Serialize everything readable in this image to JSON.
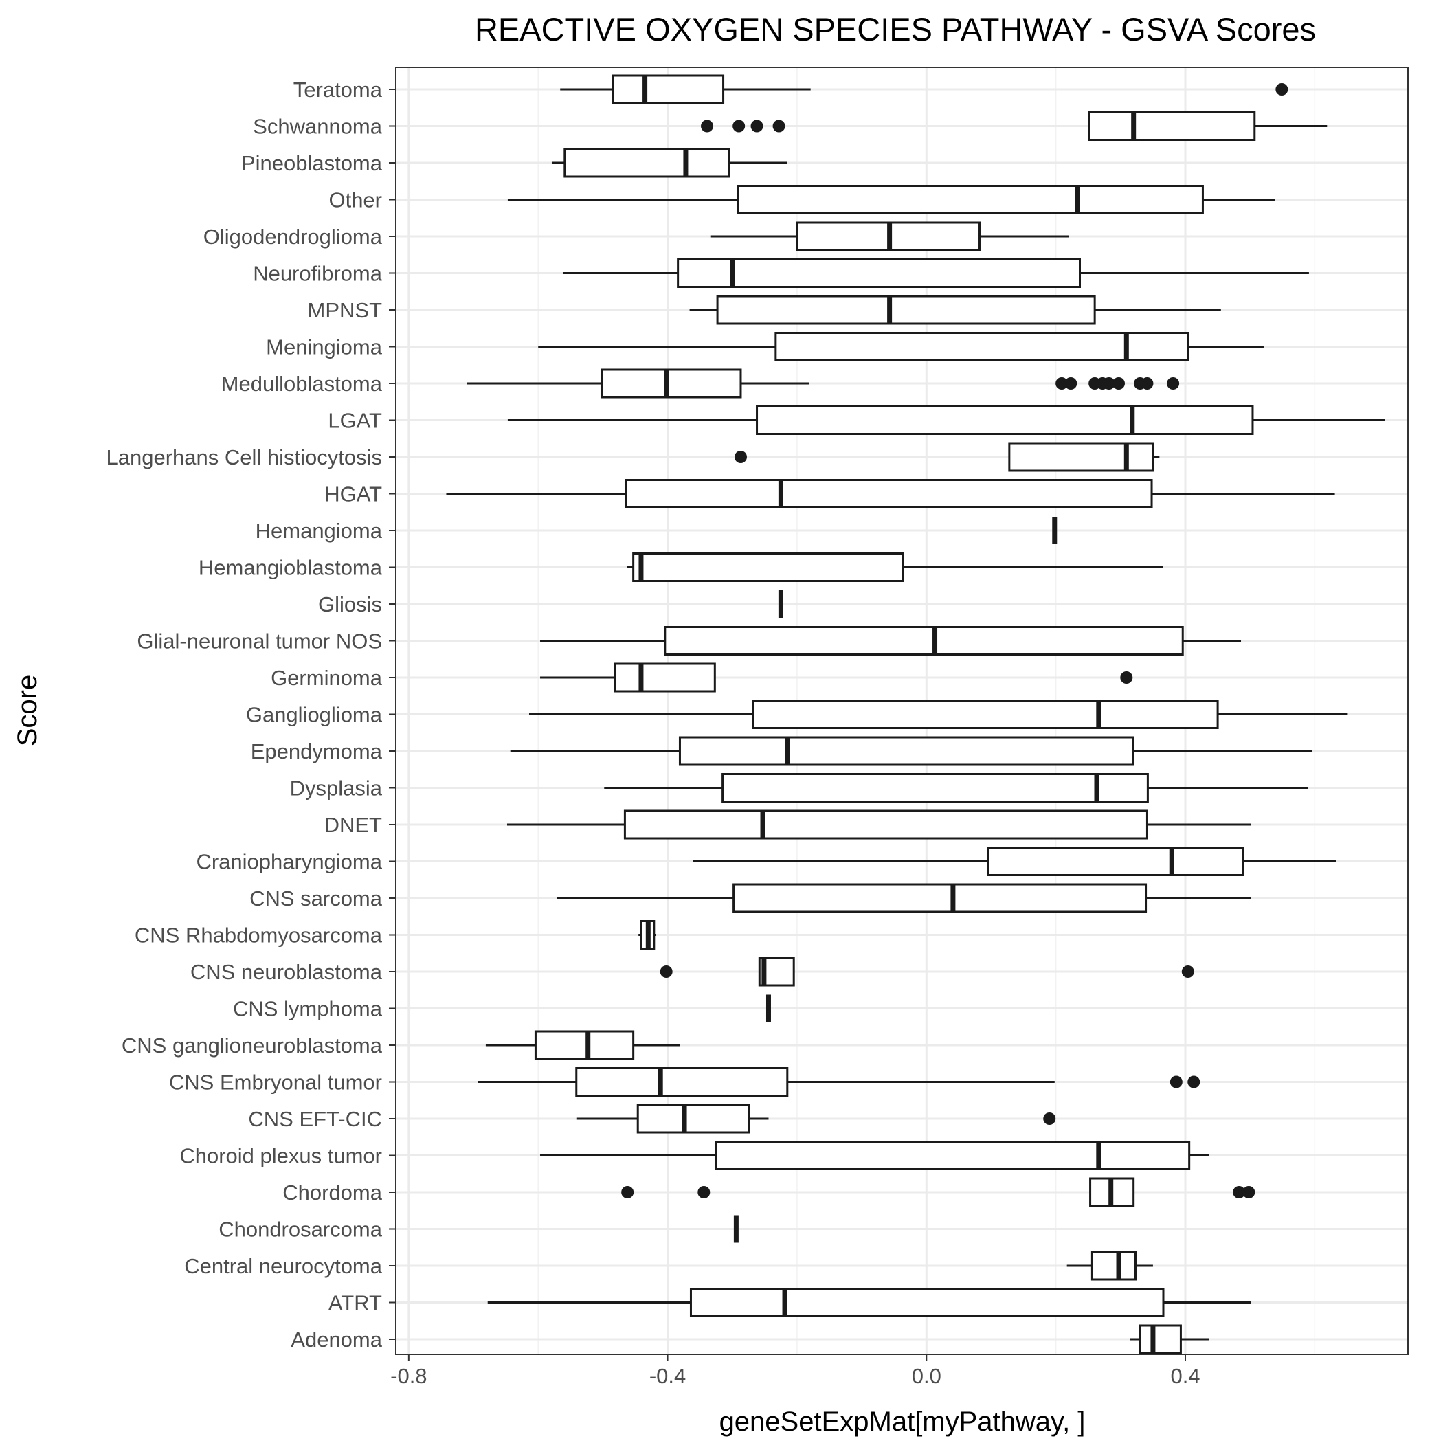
{
  "chart_data": {
    "type": "boxplot",
    "orientation": "horizontal",
    "title": "REACTIVE OXYGEN SPECIES PATHWAY - GSVA Scores",
    "xlabel": "geneSetExpMat[myPathway, ]",
    "ylabel": "Score",
    "xlim": [
      -0.82,
      0.744
    ],
    "x_ticks": [
      -0.8,
      -0.4,
      0.0,
      0.4
    ],
    "x_tick_labels": [
      "-0.8",
      "-0.4",
      "0.0",
      "0.4"
    ],
    "grid": true,
    "legend": "none",
    "categories": [
      {
        "name": "Teratoma",
        "whisker_low": -0.566,
        "q1": -0.484,
        "median": -0.435,
        "q3": -0.314,
        "whisker_high": -0.179,
        "outliers": [
          0.549
        ]
      },
      {
        "name": "Schwannoma",
        "whisker_low": 0.251,
        "q1": 0.251,
        "median": 0.32,
        "q3": 0.507,
        "whisker_high": 0.619,
        "outliers": [
          -0.339,
          -0.29,
          -0.262,
          -0.228
        ]
      },
      {
        "name": "Pineoblastoma",
        "whisker_low": -0.579,
        "q1": -0.559,
        "median": -0.372,
        "q3": -0.305,
        "whisker_high": -0.215,
        "outliers": []
      },
      {
        "name": "Other",
        "whisker_low": -0.647,
        "q1": -0.291,
        "median": 0.233,
        "q3": 0.427,
        "whisker_high": 0.539,
        "outliers": []
      },
      {
        "name": "Oligodendroglioma",
        "whisker_low": -0.334,
        "q1": -0.2,
        "median": -0.057,
        "q3": 0.082,
        "whisker_high": 0.22,
        "outliers": []
      },
      {
        "name": "Neurofibroma",
        "whisker_low": -0.562,
        "q1": -0.384,
        "median": -0.3,
        "q3": 0.237,
        "whisker_high": 0.591,
        "outliers": []
      },
      {
        "name": "MPNST",
        "whisker_low": -0.366,
        "q1": -0.323,
        "median": -0.057,
        "q3": 0.26,
        "whisker_high": 0.455,
        "outliers": []
      },
      {
        "name": "Meningioma",
        "whisker_low": -0.6,
        "q1": -0.233,
        "median": 0.309,
        "q3": 0.404,
        "whisker_high": 0.521,
        "outliers": []
      },
      {
        "name": "Medulloblastoma",
        "whisker_low": -0.71,
        "q1": -0.502,
        "median": -0.402,
        "q3": -0.287,
        "whisker_high": -0.181,
        "outliers": [
          0.209,
          0.223,
          0.26,
          0.272,
          0.282,
          0.297,
          0.33,
          0.341,
          0.381
        ]
      },
      {
        "name": "LGAT",
        "whisker_low": -0.647,
        "q1": -0.262,
        "median": 0.318,
        "q3": 0.504,
        "whisker_high": 0.708,
        "outliers": []
      },
      {
        "name": "Langerhans Cell histiocytosis",
        "whisker_low": 0.128,
        "q1": 0.128,
        "median": 0.309,
        "q3": 0.35,
        "whisker_high": 0.36,
        "outliers": [
          -0.287
        ]
      },
      {
        "name": "HGAT",
        "whisker_low": -0.742,
        "q1": -0.464,
        "median": -0.225,
        "q3": 0.348,
        "whisker_high": 0.631,
        "outliers": []
      },
      {
        "name": "Hemangioma",
        "whisker_low": 0.198,
        "q1": 0.198,
        "median": 0.198,
        "q3": 0.198,
        "whisker_high": 0.198,
        "outliers": []
      },
      {
        "name": "Hemangioblastoma",
        "whisker_low": -0.463,
        "q1": -0.453,
        "median": -0.441,
        "q3": -0.036,
        "whisker_high": 0.366,
        "outliers": []
      },
      {
        "name": "Gliosis",
        "whisker_low": -0.225,
        "q1": -0.225,
        "median": -0.225,
        "q3": -0.225,
        "whisker_high": -0.225,
        "outliers": []
      },
      {
        "name": "Glial-neuronal tumor NOS",
        "whisker_low": -0.597,
        "q1": -0.404,
        "median": 0.013,
        "q3": 0.396,
        "whisker_high": 0.486,
        "outliers": []
      },
      {
        "name": "Germinoma",
        "whisker_low": -0.597,
        "q1": -0.481,
        "median": -0.441,
        "q3": -0.327,
        "whisker_high": -0.327,
        "outliers": [
          0.309
        ]
      },
      {
        "name": "Ganglioglioma",
        "whisker_low": -0.614,
        "q1": -0.268,
        "median": 0.266,
        "q3": 0.45,
        "whisker_high": 0.651,
        "outliers": []
      },
      {
        "name": "Ependymoma",
        "whisker_low": -0.643,
        "q1": -0.381,
        "median": -0.215,
        "q3": 0.319,
        "whisker_high": 0.596,
        "outliers": []
      },
      {
        "name": "Dysplasia",
        "whisker_low": -0.498,
        "q1": -0.315,
        "median": 0.263,
        "q3": 0.342,
        "whisker_high": 0.59,
        "outliers": []
      },
      {
        "name": "DNET",
        "whisker_low": -0.648,
        "q1": -0.466,
        "median": -0.253,
        "q3": 0.341,
        "whisker_high": 0.501,
        "outliers": []
      },
      {
        "name": "Craniopharyngioma",
        "whisker_low": -0.361,
        "q1": 0.095,
        "median": 0.379,
        "q3": 0.489,
        "whisker_high": 0.633,
        "outliers": []
      },
      {
        "name": "CNS sarcoma",
        "whisker_low": -0.571,
        "q1": -0.298,
        "median": 0.041,
        "q3": 0.339,
        "whisker_high": 0.501,
        "outliers": []
      },
      {
        "name": "CNS Rhabdomyosarcoma",
        "whisker_low": -0.445,
        "q1": -0.441,
        "median": -0.43,
        "q3": -0.421,
        "whisker_high": -0.418,
        "outliers": []
      },
      {
        "name": "CNS neuroblastoma",
        "whisker_low": -0.258,
        "q1": -0.258,
        "median": -0.251,
        "q3": -0.205,
        "whisker_high": -0.205,
        "outliers": [
          -0.402,
          0.404
        ]
      },
      {
        "name": "CNS lymphoma",
        "whisker_low": -0.244,
        "q1": -0.244,
        "median": -0.244,
        "q3": -0.244,
        "whisker_high": -0.244,
        "outliers": []
      },
      {
        "name": "CNS ganglioneuroblastoma",
        "whisker_low": -0.681,
        "q1": -0.604,
        "median": -0.523,
        "q3": -0.453,
        "whisker_high": -0.381,
        "outliers": []
      },
      {
        "name": "CNS Embryonal tumor",
        "whisker_low": -0.693,
        "q1": -0.541,
        "median": -0.411,
        "q3": -0.215,
        "whisker_high": 0.198,
        "outliers": [
          0.386,
          0.413
        ]
      },
      {
        "name": "CNS EFT-CIC",
        "whisker_low": -0.541,
        "q1": -0.446,
        "median": -0.374,
        "q3": -0.274,
        "whisker_high": -0.244,
        "outliers": [
          0.19
        ]
      },
      {
        "name": "Choroid plexus tumor",
        "whisker_low": -0.597,
        "q1": -0.325,
        "median": 0.266,
        "q3": 0.406,
        "whisker_high": 0.437,
        "outliers": []
      },
      {
        "name": "Chordoma",
        "whisker_low": 0.253,
        "q1": 0.253,
        "median": 0.285,
        "q3": 0.32,
        "whisker_high": 0.32,
        "outliers": [
          -0.462,
          -0.344,
          0.483,
          0.498
        ]
      },
      {
        "name": "Chondrosarcoma",
        "whisker_low": -0.294,
        "q1": -0.294,
        "median": -0.294,
        "q3": -0.294,
        "whisker_high": -0.294,
        "outliers": []
      },
      {
        "name": "Central neurocytoma",
        "whisker_low": 0.217,
        "q1": 0.256,
        "median": 0.297,
        "q3": 0.323,
        "whisker_high": 0.35,
        "outliers": []
      },
      {
        "name": "ATRT",
        "whisker_low": -0.678,
        "q1": -0.364,
        "median": -0.219,
        "q3": 0.366,
        "whisker_high": 0.501,
        "outliers": []
      },
      {
        "name": "Adenoma",
        "whisker_low": 0.314,
        "q1": 0.33,
        "median": 0.35,
        "q3": 0.393,
        "whisker_high": 0.437,
        "outliers": []
      }
    ]
  },
  "style": {
    "panel_border": "#333333",
    "grid_major": "#ebebeb",
    "grid_minor": "#f2f2f2",
    "box_stroke": "#1a1a1a",
    "outlier_fill": "#1a1a1a",
    "tick_color": "#333333"
  }
}
